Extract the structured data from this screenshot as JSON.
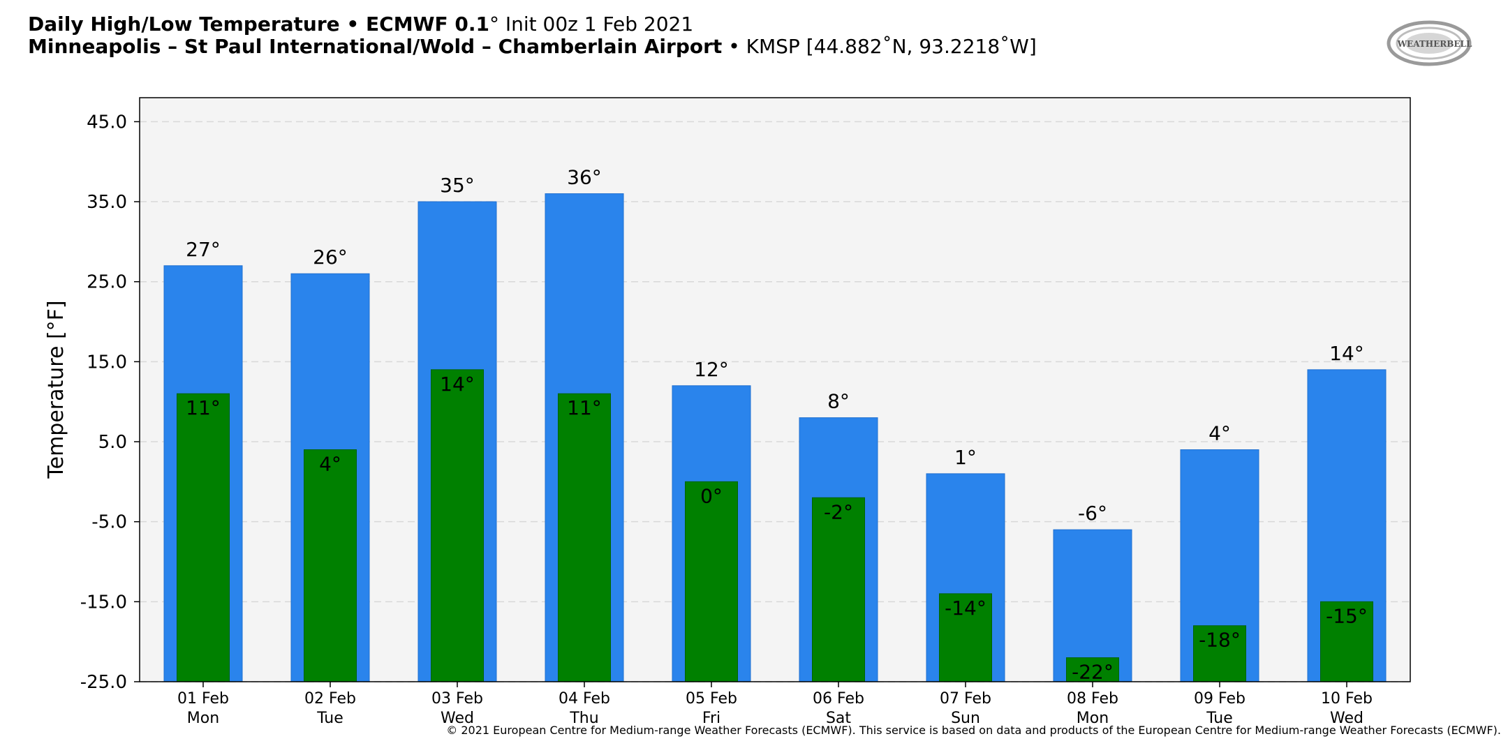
{
  "header": {
    "title_bold": "Daily High/Low Temperature • ECMWF 0.1",
    "title_deg": "°",
    "title_rest": " Init 00z 1 Feb 2021",
    "subtitle_bold": "Minneapolis – St Paul International/Wold – Chamberlain Airport",
    "subtitle_rest": " • KMSP [44.882˚N, 93.2218˚W]"
  },
  "logo": {
    "icon": "weatherbell-logo",
    "text": "WEATHERBELL"
  },
  "footer": "© 2021 European Centre for Medium-range Weather Forecasts (ECMWF). This service is based on data and products of the European Centre for Medium-range Weather Forecasts (ECMWF).",
  "colors": {
    "high": "#2A84EC",
    "low": "#008000",
    "plot_bg": "#F4F4F4",
    "grid": "#D8D8D8"
  },
  "chart_data": {
    "type": "bar",
    "ylabel": "Temperature [°F]",
    "ylim": [
      -25,
      48
    ],
    "yticks": [
      "45.0",
      "35.0",
      "25.0",
      "15.0",
      "5.0",
      "-5.0",
      "-15.0",
      "-25.0"
    ],
    "ytick_values": [
      45,
      35,
      25,
      15,
      5,
      -5,
      -15,
      -25
    ],
    "grid": true,
    "categories": [
      [
        "01 Feb",
        "Mon"
      ],
      [
        "02 Feb",
        "Tue"
      ],
      [
        "03 Feb",
        "Wed"
      ],
      [
        "04 Feb",
        "Thu"
      ],
      [
        "05 Feb",
        "Fri"
      ],
      [
        "06 Feb",
        "Sat"
      ],
      [
        "07 Feb",
        "Sun"
      ],
      [
        "08 Feb",
        "Mon"
      ],
      [
        "09 Feb",
        "Tue"
      ],
      [
        "10 Feb",
        "Wed"
      ]
    ],
    "series": [
      {
        "values": [
          27,
          26,
          35,
          36,
          12,
          8,
          1,
          -6,
          4,
          14
        ],
        "labels": [
          "27°",
          "26°",
          "35°",
          "36°",
          "12°",
          "8°",
          "1°",
          "-6°",
          "4°",
          "14°"
        ]
      },
      {
        "values": [
          11,
          4,
          14,
          11,
          0,
          -2,
          -14,
          -22,
          -18,
          -15
        ],
        "labels": [
          "11°",
          "4°",
          "14°",
          "11°",
          "0°",
          "-2°",
          "-14°",
          "-22°",
          "-18°",
          "-15°"
        ]
      }
    ]
  }
}
